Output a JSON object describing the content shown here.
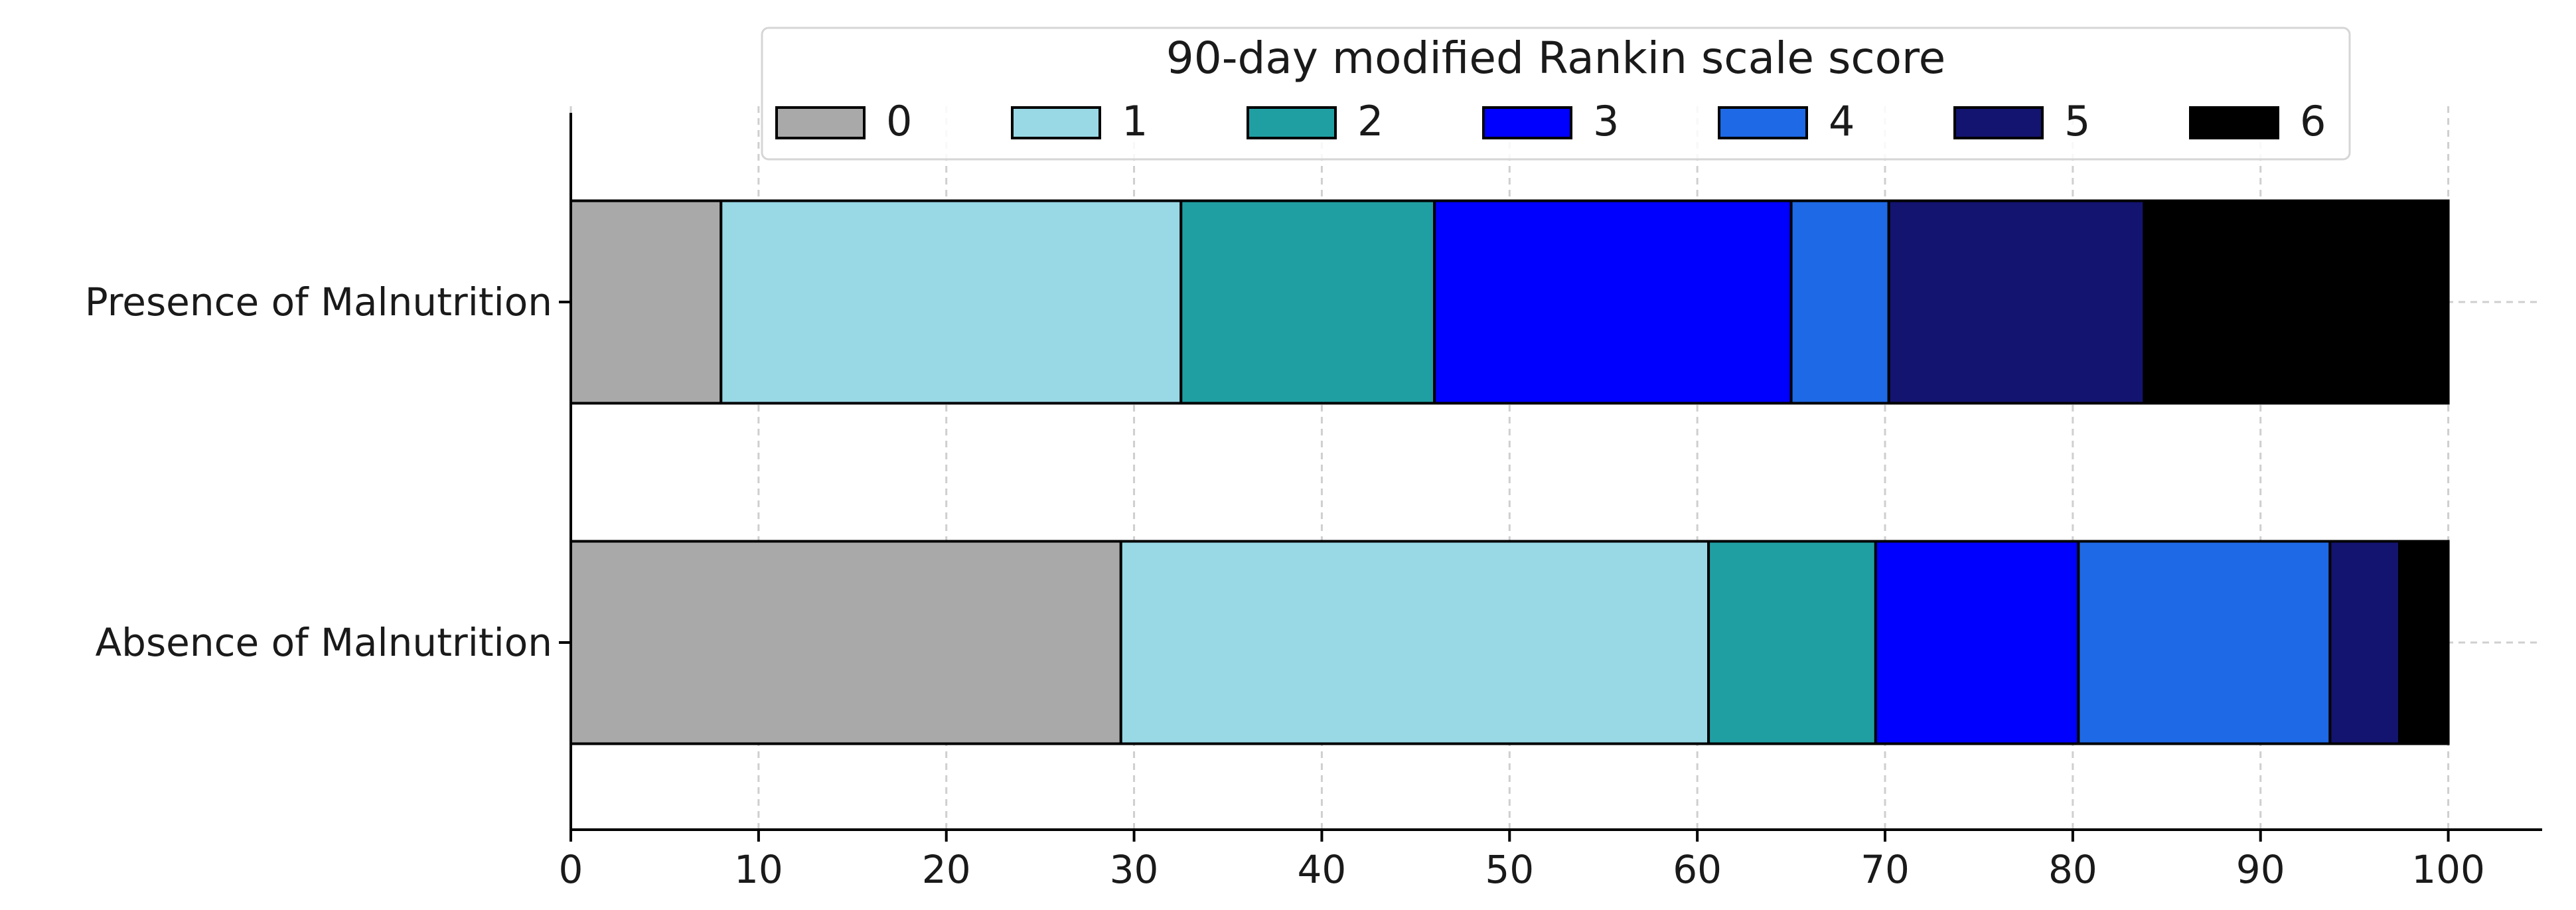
{
  "chart_data": {
    "type": "bar",
    "orientation": "horizontal",
    "stacked": true,
    "categories": [
      "Presence of Malnutrition",
      "Absence of Malnutrition"
    ],
    "legend": {
      "title": "90-day modified Rankin scale score",
      "placement": "top-center"
    },
    "series": [
      {
        "name": "0",
        "color": "#a9a9a9",
        "values": [
          8.0,
          29.3
        ]
      },
      {
        "name": "1",
        "color": "#99d9e6",
        "values": [
          24.5,
          31.3
        ]
      },
      {
        "name": "2",
        "color": "#209fa3",
        "values": [
          13.5,
          8.9
        ]
      },
      {
        "name": "3",
        "color": "#0000ff",
        "values": [
          19.0,
          10.8
        ]
      },
      {
        "name": "4",
        "color": "#1e69e6",
        "values": [
          5.2,
          13.4
        ]
      },
      {
        "name": "5",
        "color": "#131370",
        "values": [
          13.6,
          3.7
        ]
      },
      {
        "name": "6",
        "color": "#000000",
        "values": [
          16.2,
          2.6
        ]
      }
    ],
    "xlim": [
      0,
      105
    ],
    "xticks": [
      "0",
      "10",
      "20",
      "30",
      "40",
      "50",
      "60",
      "70",
      "80",
      "90",
      "100"
    ],
    "xlabel": "",
    "ylabel": "",
    "grid": true
  }
}
